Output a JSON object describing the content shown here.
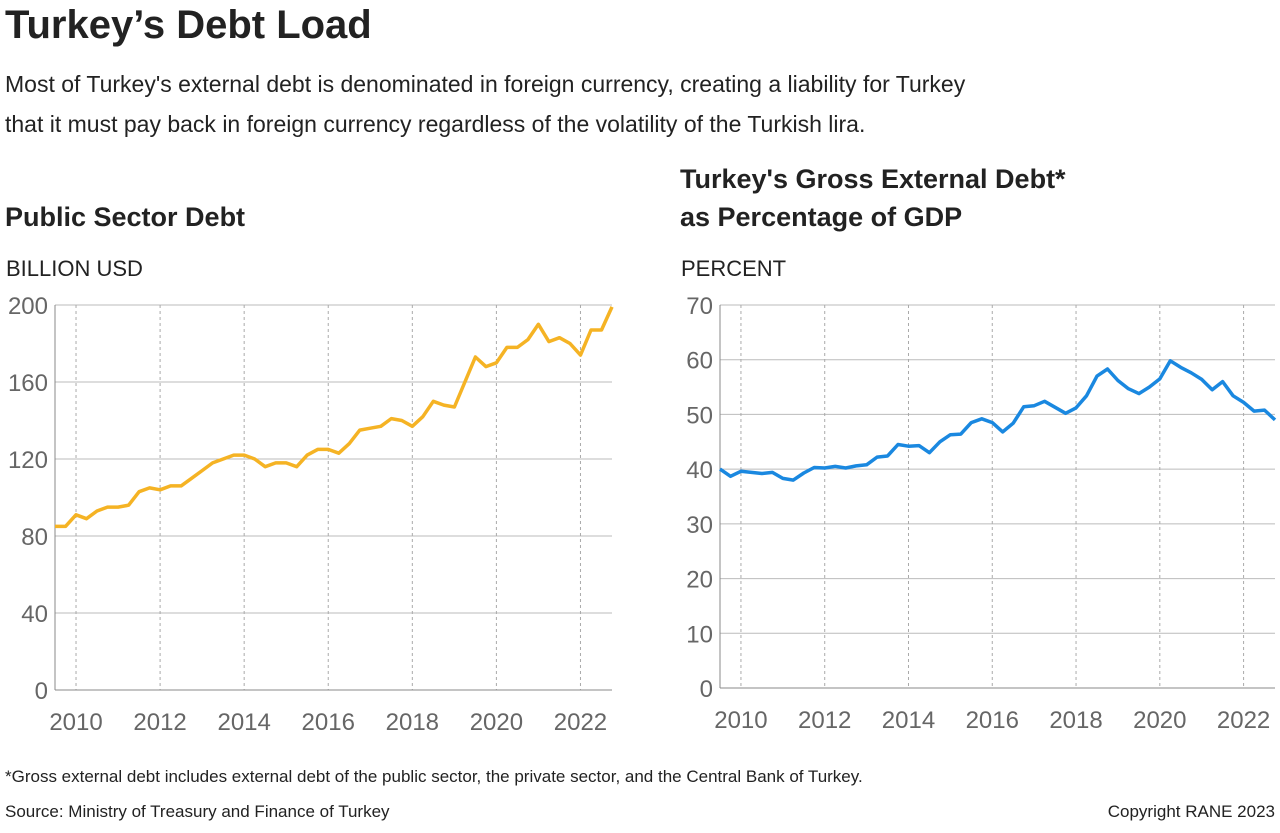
{
  "title": "Turkey’s Debt Load",
  "subtitle": [
    "Most of Turkey's external debt is denominated in foreign currency, creating a liability for Turkey",
    "that it must pay back in foreign currency regardless of the volatility of the Turkish lira."
  ],
  "footnote": "*Gross external debt includes external debt of the public sector, the private sector, and the Central Bank of Turkey.",
  "source": "Source: Ministry of Treasury and Finance of Turkey",
  "copyright": "Copyright RANE 2023",
  "chart_data": [
    {
      "type": "line",
      "title": [
        "Public Sector Debt"
      ],
      "ylabel": "BILLION USD",
      "color": "#f5b324",
      "x": [
        2009.5,
        2009.75,
        2010,
        2010.25,
        2010.5,
        2010.75,
        2011,
        2011.25,
        2011.5,
        2011.75,
        2012,
        2012.25,
        2012.5,
        2012.75,
        2013,
        2013.25,
        2013.5,
        2013.75,
        2014,
        2014.25,
        2014.5,
        2014.75,
        2015,
        2015.25,
        2015.5,
        2015.75,
        2016,
        2016.25,
        2016.5,
        2016.75,
        2017,
        2017.25,
        2017.5,
        2017.75,
        2018,
        2018.25,
        2018.5,
        2018.75,
        2019,
        2019.25,
        2019.5,
        2019.75,
        2020,
        2020.25,
        2020.5,
        2020.75,
        2021,
        2021.25,
        2021.5,
        2021.75,
        2022,
        2022.25,
        2022.5,
        2022.75
      ],
      "values": [
        85,
        85,
        91,
        89,
        93,
        95,
        95,
        96,
        103,
        105,
        104,
        106,
        106,
        110,
        114,
        118,
        120,
        122,
        122,
        120,
        116,
        118,
        118,
        116,
        122,
        125,
        125,
        123,
        128,
        135,
        136,
        137,
        141,
        140,
        137,
        142,
        150,
        148,
        147,
        160,
        173,
        168,
        170,
        178,
        178,
        182,
        190,
        181,
        183,
        180,
        174,
        187,
        187,
        199
      ],
      "xlim": [
        2009.5,
        2022.75
      ],
      "xticks": [
        2010,
        2012,
        2014,
        2016,
        2018,
        2020,
        2022
      ],
      "ylim": [
        0,
        200
      ],
      "yticks": [
        0,
        40,
        80,
        120,
        160,
        200
      ],
      "grid": true
    },
    {
      "type": "line",
      "title": [
        "Turkey's Gross External Debt*",
        "as Percentage of GDP"
      ],
      "ylabel": "PERCENT",
      "color": "#1a88e0",
      "x": [
        2009.5,
        2009.75,
        2010,
        2010.25,
        2010.5,
        2010.75,
        2011,
        2011.25,
        2011.5,
        2011.75,
        2012,
        2012.25,
        2012.5,
        2012.75,
        2013,
        2013.25,
        2013.5,
        2013.75,
        2014,
        2014.25,
        2014.5,
        2014.75,
        2015,
        2015.25,
        2015.5,
        2015.75,
        2016,
        2016.25,
        2016.5,
        2016.75,
        2017,
        2017.25,
        2017.5,
        2017.75,
        2018,
        2018.25,
        2018.5,
        2018.75,
        2019,
        2019.25,
        2019.5,
        2019.75,
        2020,
        2020.25,
        2020.5,
        2020.75,
        2021,
        2021.25,
        2021.5,
        2021.75,
        2022,
        2022.25,
        2022.5,
        2022.75
      ],
      "values": [
        40,
        38.7,
        39.6,
        39.4,
        39.2,
        39.4,
        38.3,
        38,
        39.3,
        40.3,
        40.2,
        40.5,
        40.2,
        40.6,
        40.8,
        42.2,
        42.4,
        44.5,
        44.2,
        44.3,
        43,
        45,
        46.3,
        46.4,
        48.5,
        49.2,
        48.5,
        46.8,
        48.4,
        51.4,
        51.6,
        52.4,
        51.3,
        50.2,
        51.2,
        53.4,
        57,
        58.3,
        56.2,
        54.7,
        53.8,
        55,
        56.5,
        59.8,
        58.6,
        57.6,
        56.4,
        54.5,
        56,
        53.4,
        52.2,
        50.6,
        50.8,
        49
      ],
      "xlim": [
        2009.5,
        2022.75
      ],
      "xticks": [
        2010,
        2012,
        2014,
        2016,
        2018,
        2020,
        2022
      ],
      "ylim": [
        0,
        70
      ],
      "yticks": [
        0,
        10,
        20,
        30,
        40,
        50,
        60,
        70
      ],
      "grid": true
    }
  ]
}
